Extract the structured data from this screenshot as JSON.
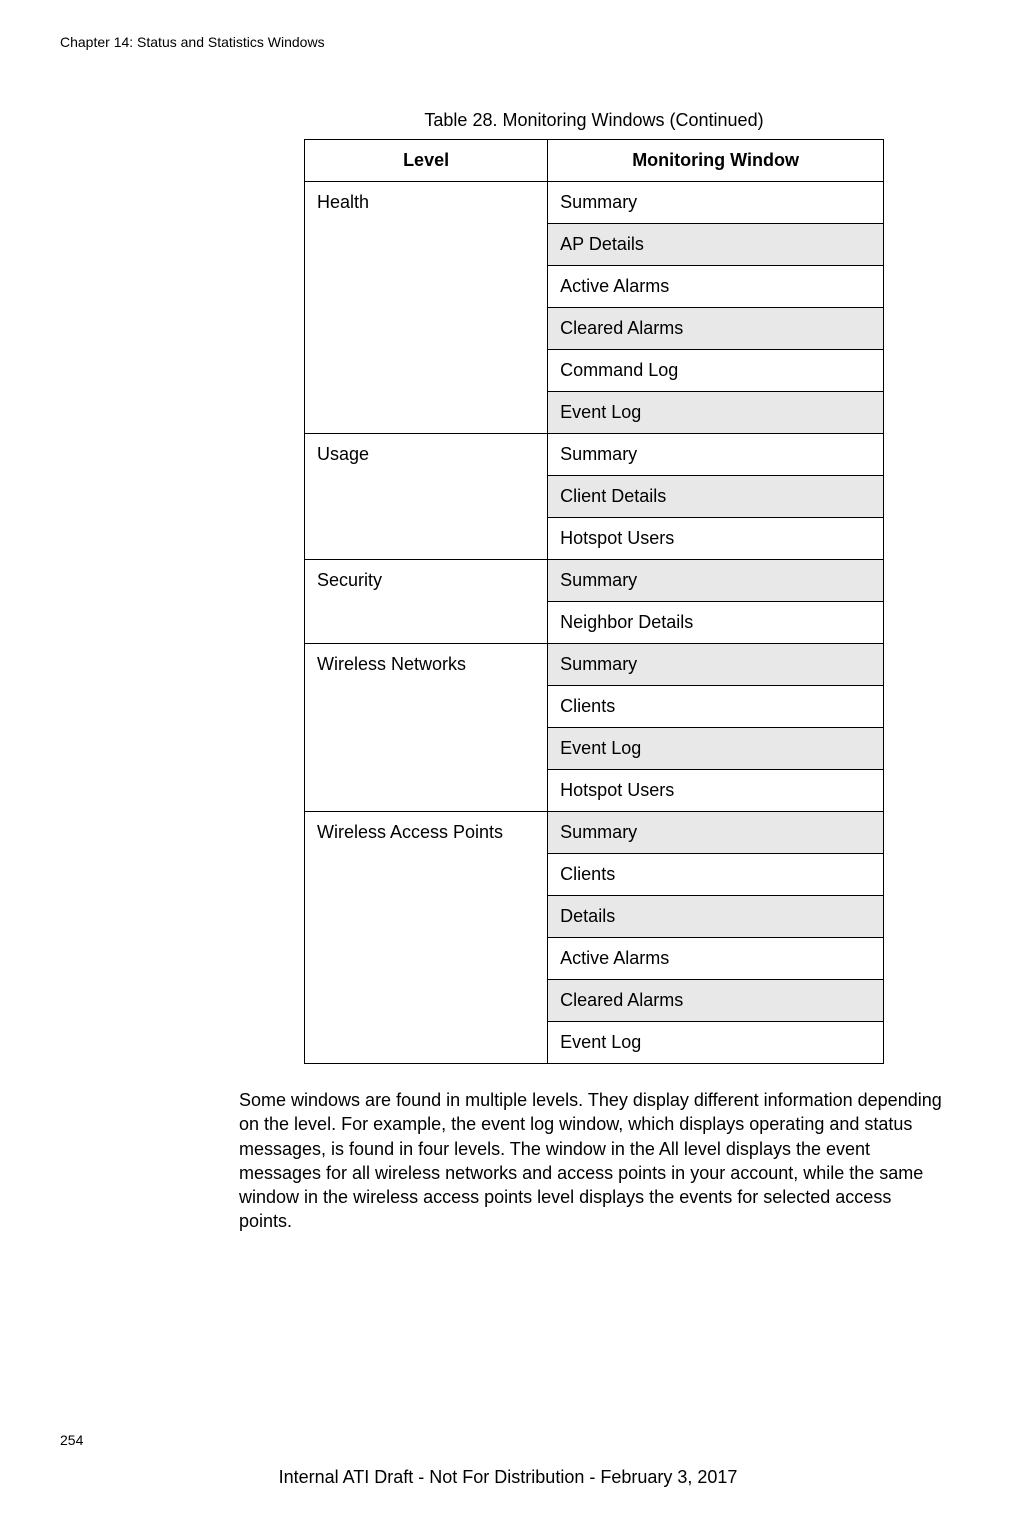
{
  "header": {
    "chapter": "Chapter 14: Status and Statistics Windows"
  },
  "table": {
    "caption": "Table 28. Monitoring Windows (Continued)",
    "headers": {
      "level": "Level",
      "window": "Monitoring Window"
    },
    "groups": [
      {
        "level": "Health",
        "windows": [
          "Summary",
          "AP Details",
          "Active Alarms",
          "Cleared Alarms",
          "Command Log",
          "Event Log"
        ]
      },
      {
        "level": "Usage",
        "windows": [
          "Summary",
          "Client Details",
          "Hotspot Users"
        ]
      },
      {
        "level": "Security",
        "windows": [
          "Summary",
          "Neighbor Details"
        ]
      },
      {
        "level": "Wireless Networks",
        "windows": [
          "Summary",
          "Clients",
          "Event Log",
          "Hotspot Users"
        ]
      },
      {
        "level": "Wireless Access Points",
        "windows": [
          "Summary",
          "Clients",
          "Details",
          "Active Alarms",
          "Cleared Alarms",
          "Event Log"
        ]
      }
    ]
  },
  "body": {
    "paragraph": "Some windows are found in multiple levels. They display different information depending on the level. For example, the event log window, which displays operating and status messages, is found in four levels. The window in the All level displays the event messages for all wireless networks and access points in your account, while the same window in the wireless access points level displays the events for selected access points."
  },
  "footer": {
    "page_number": "254",
    "notice": "Internal ATI Draft - Not For Distribution - February 3, 2017"
  },
  "style": {
    "font_family": "Arial, Helvetica, sans-serif",
    "body_fontsize": 18,
    "header_fontsize": 14,
    "shaded_bg": "#e8e8e8",
    "border_color": "#000000",
    "text_color": "#000000",
    "background_color": "#ffffff"
  }
}
